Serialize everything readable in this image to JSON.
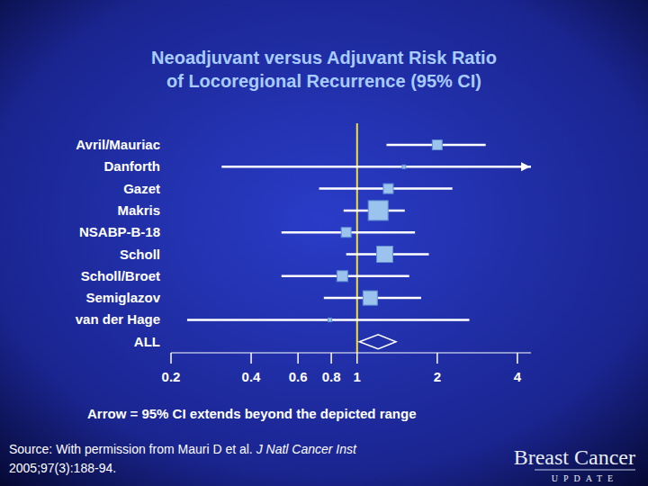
{
  "chart_data": {
    "type": "forest",
    "title": "Neoadjuvant versus Adjuvant Risk Ratio of Locoregional Recurrence (95% CI)",
    "categories": [
      "Avril/Mauriac",
      "Danforth",
      "Gazet",
      "Makris",
      "NSABP-B-18",
      "Scholl",
      "Scholl/Broet",
      "Semiglazov",
      "van der Hage"
    ],
    "values": [
      2.0,
      1.5,
      1.31,
      1.2,
      0.91,
      1.27,
      0.88,
      1.12,
      0.79
    ],
    "lower": [
      1.29,
      0.31,
      0.72,
      0.89,
      0.52,
      0.91,
      0.52,
      0.75,
      0.23
    ],
    "upper": [
      3.04,
      5.0,
      2.28,
      1.51,
      1.65,
      1.86,
      1.57,
      1.74,
      2.64
    ],
    "weights": [
      11,
      4,
      11,
      22,
      11,
      18,
      12,
      16,
      4
    ],
    "summary": {
      "name": "ALL",
      "value": 1.2,
      "lower": 1.02,
      "upper": 1.4
    },
    "reference_line": 1,
    "xlim": [
      0.2,
      4.5
    ],
    "xticks": [
      0.2,
      0.4,
      0.6,
      0.8,
      1,
      2,
      4
    ],
    "log": "x",
    "color": "#9cc3ee",
    "annotation": "Arrow = 95% CI extends beyond the depicted range",
    "source": {
      "text": "Source: With permission from Mauri D et al.",
      "journal": "J Natl Cancer Inst",
      "citation": "2005;97(3):188-94."
    },
    "logo": {
      "text": "Breast Cancer",
      "subtext": "UPDATE"
    }
  }
}
